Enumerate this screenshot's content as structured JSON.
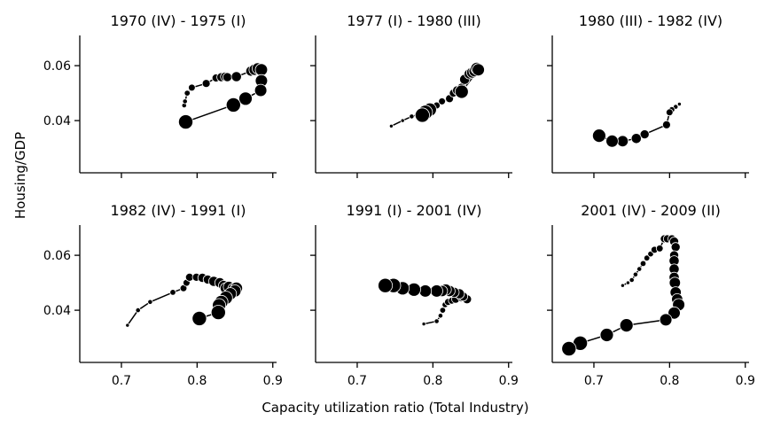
{
  "figure": {
    "xlabel": "Capacity utilization ratio (Total Industry)",
    "ylabel": "Housing/GDP"
  },
  "chart_data": [
    {
      "type": "scatter",
      "title": "1970 (IV) - 1975 (I)",
      "xlim": [
        0.645,
        0.905
      ],
      "ylim": [
        0.021,
        0.071
      ],
      "xticks": [
        0.7,
        0.8,
        0.9
      ],
      "yticks": [
        0.04,
        0.06
      ],
      "x": [
        0.783,
        0.784,
        0.787,
        0.793,
        0.812,
        0.825,
        0.832,
        0.837,
        0.84,
        0.852,
        0.871,
        0.876,
        0.88,
        0.885,
        0.885,
        0.884,
        0.864,
        0.848,
        0.785
      ],
      "y": [
        0.0455,
        0.047,
        0.05,
        0.052,
        0.0535,
        0.0555,
        0.0558,
        0.056,
        0.0558,
        0.056,
        0.058,
        0.0585,
        0.059,
        0.0585,
        0.0545,
        0.051,
        0.048,
        0.0457,
        0.0395
      ],
      "size": [
        3,
        3,
        4,
        5,
        6,
        6,
        7,
        7,
        7,
        8,
        8,
        9,
        9,
        10,
        10,
        10,
        11,
        12,
        12
      ]
    },
    {
      "type": "scatter",
      "title": "1977 (I) - 1980 (III)",
      "xlim": [
        0.645,
        0.905
      ],
      "ylim": [
        0.021,
        0.071
      ],
      "xticks": [
        0.7,
        0.8,
        0.9
      ],
      "yticks": [
        0.04,
        0.06
      ],
      "x": [
        0.745,
        0.76,
        0.772,
        0.785,
        0.795,
        0.8,
        0.805,
        0.812,
        0.822,
        0.827,
        0.832,
        0.838,
        0.842,
        0.848,
        0.852,
        0.855,
        0.858,
        0.86,
        0.838,
        0.796,
        0.79,
        0.786
      ],
      "y": [
        0.038,
        0.04,
        0.0415,
        0.0425,
        0.0438,
        0.0445,
        0.0455,
        0.047,
        0.048,
        0.05,
        0.051,
        0.052,
        0.055,
        0.057,
        0.0575,
        0.058,
        0.059,
        0.0585,
        0.0505,
        0.044,
        0.043,
        0.042
      ],
      "size": [
        2,
        2,
        3,
        3,
        4,
        4,
        5,
        5,
        6,
        6,
        7,
        7,
        8,
        8,
        9,
        9,
        10,
        10,
        11,
        11,
        12,
        12
      ]
    },
    {
      "type": "scatter",
      "title": "1980 (III) - 1982 (IV)",
      "xlim": [
        0.645,
        0.905
      ],
      "ylim": [
        0.021,
        0.071
      ],
      "xticks": [
        0.7,
        0.8,
        0.9
      ],
      "yticks": [
        0.04,
        0.06
      ],
      "x": [
        0.813,
        0.808,
        0.803,
        0.8,
        0.796,
        0.767,
        0.756,
        0.738,
        0.724,
        0.707
      ],
      "y": [
        0.046,
        0.045,
        0.044,
        0.043,
        0.0385,
        0.035,
        0.0335,
        0.0325,
        0.0325,
        0.0345
      ],
      "size": [
        2,
        3,
        4,
        5,
        6,
        7,
        8,
        9,
        10,
        11
      ]
    },
    {
      "type": "scatter",
      "title": "1982 (IV) - 1991 (I)",
      "xlim": [
        0.645,
        0.905
      ],
      "ylim": [
        0.021,
        0.071
      ],
      "xticks": [
        0.7,
        0.8,
        0.9
      ],
      "yticks": [
        0.04,
        0.06
      ],
      "x": [
        0.708,
        0.722,
        0.738,
        0.768,
        0.782,
        0.786,
        0.79,
        0.799,
        0.807,
        0.814,
        0.822,
        0.83,
        0.835,
        0.838,
        0.842,
        0.848,
        0.852,
        0.85,
        0.844,
        0.838,
        0.832,
        0.829,
        0.828,
        0.803
      ],
      "y": [
        0.0345,
        0.04,
        0.043,
        0.0465,
        0.048,
        0.05,
        0.052,
        0.052,
        0.0518,
        0.0512,
        0.0505,
        0.05,
        0.049,
        0.048,
        0.0485,
        0.0478,
        0.048,
        0.047,
        0.046,
        0.0445,
        0.043,
        0.0418,
        0.0392,
        0.037
      ],
      "size": [
        2,
        3,
        3,
        4,
        5,
        5,
        6,
        6,
        7,
        7,
        8,
        8,
        8,
        9,
        9,
        9,
        10,
        10,
        10,
        11,
        11,
        11,
        12,
        12
      ]
    },
    {
      "type": "scatter",
      "title": "1991 (I) - 2001 (IV)",
      "xlim": [
        0.645,
        0.905
      ],
      "ylim": [
        0.021,
        0.071
      ],
      "xticks": [
        0.7,
        0.8,
        0.9
      ],
      "yticks": [
        0.04,
        0.06
      ],
      "x": [
        0.788,
        0.805,
        0.81,
        0.813,
        0.816,
        0.82,
        0.825,
        0.83,
        0.838,
        0.845,
        0.84,
        0.835,
        0.828,
        0.822,
        0.817,
        0.812,
        0.805,
        0.79,
        0.775,
        0.76,
        0.748,
        0.737
      ],
      "y": [
        0.035,
        0.036,
        0.038,
        0.04,
        0.042,
        0.043,
        0.0435,
        0.044,
        0.0445,
        0.044,
        0.045,
        0.046,
        0.0465,
        0.047,
        0.0475,
        0.047,
        0.047,
        0.047,
        0.0475,
        0.048,
        0.049,
        0.049
      ],
      "size": [
        2,
        3,
        3,
        4,
        4,
        5,
        5,
        6,
        6,
        7,
        7,
        8,
        8,
        9,
        9,
        9,
        10,
        10,
        11,
        11,
        12,
        12
      ]
    },
    {
      "type": "scatter",
      "title": "2001 (IV) - 2009 (II)",
      "xlim": [
        0.645,
        0.905
      ],
      "ylim": [
        0.021,
        0.071
      ],
      "xticks": [
        0.7,
        0.8,
        0.9
      ],
      "yticks": [
        0.04,
        0.06
      ],
      "x": [
        0.738,
        0.745,
        0.75,
        0.755,
        0.76,
        0.765,
        0.77,
        0.775,
        0.78,
        0.787,
        0.793,
        0.797,
        0.803,
        0.806,
        0.808,
        0.806,
        0.806,
        0.806,
        0.806,
        0.807,
        0.808,
        0.81,
        0.812,
        0.806,
        0.795,
        0.743,
        0.717,
        0.682,
        0.667
      ],
      "y": [
        0.049,
        0.05,
        0.051,
        0.053,
        0.055,
        0.057,
        0.059,
        0.0605,
        0.062,
        0.0625,
        0.066,
        0.066,
        0.066,
        0.065,
        0.063,
        0.06,
        0.058,
        0.055,
        0.052,
        0.05,
        0.0465,
        0.044,
        0.042,
        0.039,
        0.0365,
        0.0345,
        0.031,
        0.028,
        0.026
      ],
      "size": [
        2,
        2,
        3,
        3,
        3,
        4,
        4,
        4,
        5,
        5,
        6,
        6,
        6,
        7,
        7,
        7,
        8,
        8,
        8,
        9,
        9,
        9,
        10,
        10,
        10,
        11,
        11,
        12,
        12
      ]
    }
  ]
}
